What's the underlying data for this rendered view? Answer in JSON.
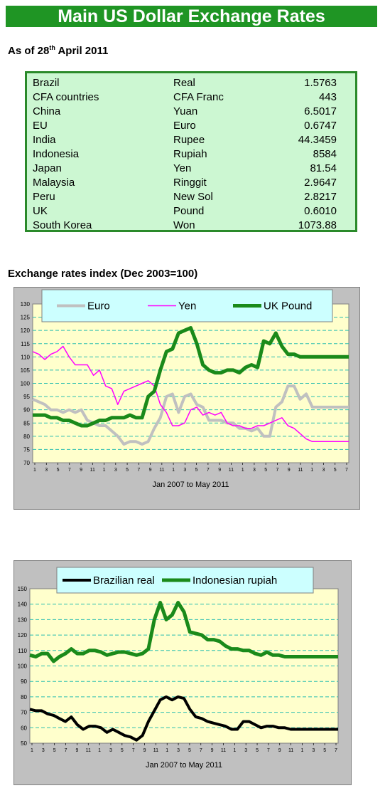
{
  "header": {
    "title": "Main US Dollar Exchange Rates"
  },
  "as_of": {
    "prefix": "As of 28",
    "sup": "th",
    "suffix": " April 2011"
  },
  "rates": [
    {
      "country": "Brazil",
      "currency": "Real",
      "value": "1.5763"
    },
    {
      "country": "CFA countries",
      "currency": "CFA Franc",
      "value": "443"
    },
    {
      "country": "China",
      "currency": "Yuan",
      "value": "6.5017"
    },
    {
      "country": "EU",
      "currency": "Euro",
      "value": "0.6747"
    },
    {
      "country": "India",
      "currency": "Rupee",
      "value": "44.3459"
    },
    {
      "country": "Indonesia",
      "currency": "Rupiah",
      "value": "8584"
    },
    {
      "country": "Japan",
      "currency": "Yen",
      "value": "81.54"
    },
    {
      "country": "Malaysia",
      "currency": "Ringgit",
      "value": "2.9647"
    },
    {
      "country": "Peru",
      "currency": "New Sol",
      "value": "2.8217"
    },
    {
      "country": "UK",
      "currency": "Pound",
      "value": "0.6010"
    },
    {
      "country": "South Korea",
      "currency": "Won",
      "value": "1073.88"
    }
  ],
  "section_title": "Exchange rates index (Dec 2003=100)",
  "colors": {
    "banner": "#1f9524",
    "plot_bg": "#ffffcc",
    "grid": "#2bbfb0",
    "legend_bg": "#ccffff"
  },
  "chart_data": [
    {
      "type": "line",
      "title": "",
      "xlabel": "Jan 2007 to May 2011",
      "ylabel": "",
      "ylim": [
        70,
        130
      ],
      "yticks": [
        70,
        75,
        80,
        85,
        90,
        95,
        100,
        105,
        110,
        115,
        120,
        125,
        130
      ],
      "xticks": [
        "1",
        "3",
        "5",
        "7",
        "9",
        "11",
        "1",
        "3",
        "5",
        "7",
        "9",
        "11",
        "1",
        "3",
        "5",
        "7",
        "9",
        "11",
        "1",
        "3",
        "5",
        "7",
        "9",
        "11",
        "1",
        "3",
        "5",
        "7"
      ],
      "grid": true,
      "legend_position": "top",
      "x": [
        "2007-01",
        "2007-02",
        "2007-03",
        "2007-04",
        "2007-05",
        "2007-06",
        "2007-07",
        "2007-08",
        "2007-09",
        "2007-10",
        "2007-11",
        "2007-12",
        "2008-01",
        "2008-02",
        "2008-03",
        "2008-04",
        "2008-05",
        "2008-06",
        "2008-07",
        "2008-08",
        "2008-09",
        "2008-10",
        "2008-11",
        "2008-12",
        "2009-01",
        "2009-02",
        "2009-03",
        "2009-04",
        "2009-05",
        "2009-06",
        "2009-07",
        "2009-08",
        "2009-09",
        "2009-10",
        "2009-11",
        "2009-12",
        "2010-01",
        "2010-02",
        "2010-03",
        "2010-04",
        "2010-05",
        "2010-06",
        "2010-07",
        "2010-08",
        "2010-09",
        "2010-10",
        "2010-11",
        "2010-12",
        "2011-01",
        "2011-02",
        "2011-03",
        "2011-04",
        "2011-05"
      ],
      "series": [
        {
          "name": "Euro",
          "color": "#c0c0c0",
          "width": 4,
          "values": [
            94,
            93,
            92,
            90,
            90,
            89,
            90,
            89,
            90,
            86,
            85,
            84,
            84,
            82,
            80,
            77,
            78,
            78,
            77,
            78,
            83,
            87,
            95,
            96,
            89,
            95,
            96,
            92,
            91,
            86,
            86,
            86,
            85,
            85,
            83,
            83,
            82,
            83,
            80,
            80,
            91,
            93,
            99,
            99,
            94,
            96,
            91,
            91,
            91,
            91,
            91,
            91,
            91
          ]
        },
        {
          "name": "Yen",
          "color": "#ff00ff",
          "width": 1.5,
          "values": [
            112,
            111,
            109,
            111,
            112,
            114,
            110,
            107,
            107,
            107,
            103,
            105,
            99,
            98,
            92,
            97,
            98,
            99,
            100,
            101,
            99,
            92,
            89,
            84,
            84,
            85,
            90,
            91,
            88,
            89,
            88,
            89,
            85,
            84,
            84,
            83,
            83,
            84,
            84,
            85,
            86,
            87,
            84,
            83,
            81,
            79,
            78,
            78,
            78,
            78,
            78,
            78,
            78
          ]
        },
        {
          "name": "UK Pound",
          "color": "#1a8a1a",
          "width": 5,
          "values": [
            88,
            88,
            88,
            87,
            87,
            86,
            86,
            85,
            84,
            84,
            85,
            86,
            86,
            87,
            87,
            87,
            88,
            87,
            87,
            95,
            97,
            105,
            112,
            113,
            119,
            120,
            121,
            115,
            107,
            105,
            104,
            104,
            105,
            105,
            104,
            106,
            107,
            106,
            116,
            115,
            119,
            114,
            111,
            111,
            110,
            110,
            110,
            110,
            110,
            110,
            110,
            110,
            110
          ]
        }
      ]
    },
    {
      "type": "line",
      "title": "",
      "xlabel": "Jan 2007 to May 2011",
      "ylabel": "",
      "ylim": [
        50,
        150
      ],
      "yticks": [
        50,
        60,
        70,
        80,
        90,
        100,
        110,
        120,
        130,
        140,
        150
      ],
      "xticks": [
        "1",
        "3",
        "5",
        "7",
        "9",
        "11",
        "1",
        "3",
        "5",
        "7",
        "9",
        "11",
        "1",
        "3",
        "5",
        "7",
        "9",
        "11",
        "1",
        "3",
        "5",
        "7",
        "9",
        "11",
        "1",
        "3",
        "5",
        "7"
      ],
      "grid": true,
      "legend_position": "top",
      "x": [
        "2007-01",
        "2007-02",
        "2007-03",
        "2007-04",
        "2007-05",
        "2007-06",
        "2007-07",
        "2007-08",
        "2007-09",
        "2007-10",
        "2007-11",
        "2007-12",
        "2008-01",
        "2008-02",
        "2008-03",
        "2008-04",
        "2008-05",
        "2008-06",
        "2008-07",
        "2008-08",
        "2008-09",
        "2008-10",
        "2008-11",
        "2008-12",
        "2009-01",
        "2009-02",
        "2009-03",
        "2009-04",
        "2009-05",
        "2009-06",
        "2009-07",
        "2009-08",
        "2009-09",
        "2009-10",
        "2009-11",
        "2009-12",
        "2010-01",
        "2010-02",
        "2010-03",
        "2010-04",
        "2010-05",
        "2010-06",
        "2010-07",
        "2010-08",
        "2010-09",
        "2010-10",
        "2010-11",
        "2010-12",
        "2011-01",
        "2011-02",
        "2011-03",
        "2011-04",
        "2011-05"
      ],
      "series": [
        {
          "name": "Brazilian real",
          "color": "#000000",
          "width": 4,
          "values": [
            72,
            71,
            71,
            69,
            68,
            66,
            64,
            67,
            62,
            59,
            61,
            61,
            60,
            57,
            59,
            57,
            55,
            54,
            52,
            55,
            64,
            71,
            78,
            80,
            78,
            80,
            79,
            72,
            67,
            66,
            64,
            63,
            62,
            61,
            59,
            59,
            64,
            64,
            62,
            60,
            61,
            61,
            60,
            60,
            59,
            59,
            59,
            59,
            59,
            59,
            59,
            59,
            59
          ]
        },
        {
          "name": "Indonesian rupiah",
          "color": "#1a8a1a",
          "width": 5,
          "values": [
            107,
            106,
            108,
            108,
            103,
            106,
            108,
            111,
            108,
            108,
            110,
            110,
            109,
            107,
            108,
            109,
            109,
            108,
            107,
            108,
            111,
            130,
            141,
            130,
            133,
            141,
            135,
            122,
            121,
            120,
            117,
            117,
            116,
            113,
            111,
            111,
            110,
            110,
            108,
            107,
            109,
            107,
            107,
            106,
            106,
            106,
            106,
            106,
            106,
            106,
            106,
            106,
            106
          ]
        }
      ]
    }
  ]
}
